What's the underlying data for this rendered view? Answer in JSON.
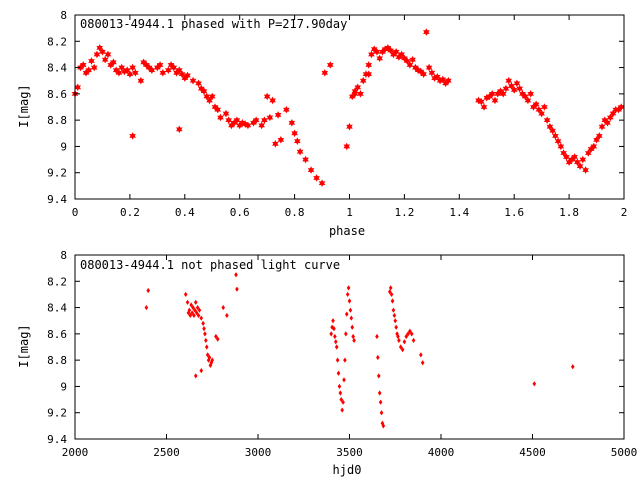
{
  "colors": {
    "series": "#ff0000",
    "axis": "#000000",
    "background": "#ffffff"
  },
  "chart_data": [
    {
      "type": "scatter",
      "title": "080013-4944.1 phased with P=217.90day",
      "xlabel": "phase",
      "ylabel": "I[mag]",
      "xlim": [
        0,
        2
      ],
      "ylim": [
        8,
        9.4
      ],
      "y_inverted": true,
      "grid": false,
      "legend": "none",
      "marker": "filled star",
      "xticks": [
        "0",
        "0.2",
        "0.4",
        "0.6",
        "0.8",
        "1",
        "1.2",
        "1.4",
        "1.6",
        "1.8",
        "2"
      ],
      "yticks": [
        "8",
        "8.2",
        "8.4",
        "8.6",
        "8.8",
        "9",
        "9.2",
        "9.4"
      ],
      "series": [
        {
          "x": [
            0.0,
            0.01,
            0.02,
            0.03,
            0.04,
            0.05,
            0.06,
            0.07,
            0.08,
            0.09,
            0.1,
            0.11,
            0.12,
            0.13,
            0.14,
            0.15,
            0.16,
            0.17,
            0.18,
            0.19,
            0.2,
            0.21,
            0.22,
            0.24,
            0.25,
            0.26,
            0.27,
            0.28,
            0.3,
            0.31,
            0.32,
            0.34,
            0.35,
            0.36,
            0.37,
            0.38,
            0.39,
            0.4,
            0.41,
            0.43,
            0.45,
            0.46,
            0.47,
            0.48,
            0.49,
            0.5,
            0.51,
            0.52,
            0.53,
            0.55,
            0.56,
            0.57,
            0.58,
            0.59,
            0.6,
            0.61,
            0.62,
            0.63,
            0.65,
            0.66,
            0.68,
            0.69,
            0.7,
            0.71,
            0.72,
            0.73,
            0.74,
            0.75,
            0.77,
            0.79,
            0.8,
            0.81,
            0.82,
            0.84,
            0.86,
            0.88,
            0.9,
            0.91,
            0.93,
            0.21,
            0.38,
            0.99,
            1.0,
            1.01,
            1.02,
            1.03,
            1.04,
            1.05,
            1.06,
            1.07,
            1.08,
            1.09,
            1.1,
            1.11,
            1.12,
            1.13,
            1.14,
            1.15,
            1.16,
            1.17,
            1.18,
            1.19,
            1.2,
            1.21,
            1.22,
            1.23,
            1.24,
            1.25,
            1.26,
            1.27,
            1.28,
            1.29,
            1.3,
            1.31,
            1.32,
            1.33,
            1.34,
            1.35,
            1.36,
            1.02,
            1.07,
            1.47,
            1.48,
            1.49,
            1.5,
            1.51,
            1.52,
            1.53,
            1.54,
            1.55,
            1.56,
            1.57,
            1.58,
            1.59,
            1.6,
            1.61,
            1.62,
            1.63,
            1.64,
            1.65,
            1.66,
            1.67,
            1.68,
            1.69,
            1.7,
            1.71,
            1.72,
            1.73,
            1.74,
            1.75,
            1.76,
            1.77,
            1.78,
            1.79,
            1.8,
            1.81,
            1.82,
            1.83,
            1.84,
            1.85,
            1.86,
            1.87,
            1.88,
            1.89,
            1.9,
            1.91,
            1.92,
            1.93,
            1.94,
            1.95,
            1.96,
            1.97,
            1.98,
            1.99
          ],
          "y": [
            8.6,
            8.55,
            8.4,
            8.38,
            8.44,
            8.42,
            8.35,
            8.4,
            8.3,
            8.25,
            8.28,
            8.34,
            8.3,
            8.38,
            8.36,
            8.42,
            8.44,
            8.4,
            8.43,
            8.42,
            8.45,
            8.4,
            8.44,
            8.5,
            8.36,
            8.38,
            8.4,
            8.42,
            8.4,
            8.38,
            8.44,
            8.42,
            8.38,
            8.4,
            8.44,
            8.42,
            8.45,
            8.48,
            8.46,
            8.5,
            8.52,
            8.56,
            8.58,
            8.62,
            8.65,
            8.62,
            8.7,
            8.72,
            8.78,
            8.75,
            8.8,
            8.84,
            8.82,
            8.8,
            8.84,
            8.82,
            8.83,
            8.84,
            8.82,
            8.8,
            8.84,
            8.8,
            8.62,
            8.78,
            8.65,
            8.98,
            8.76,
            8.95,
            8.72,
            8.82,
            8.9,
            8.96,
            9.04,
            9.1,
            9.18,
            9.24,
            9.28,
            8.44,
            8.38,
            8.92,
            8.87,
            9.0,
            8.85,
            8.62,
            8.58,
            8.55,
            8.6,
            8.5,
            8.45,
            8.38,
            8.3,
            8.26,
            8.28,
            8.33,
            8.28,
            8.26,
            8.25,
            8.27,
            8.3,
            8.28,
            8.32,
            8.3,
            8.33,
            8.35,
            8.38,
            8.34,
            8.4,
            8.42,
            8.43,
            8.45,
            8.13,
            8.4,
            8.44,
            8.48,
            8.47,
            8.5,
            8.49,
            8.52,
            8.5,
            8.6,
            8.45,
            8.65,
            8.66,
            8.7,
            8.63,
            8.62,
            8.6,
            8.65,
            8.6,
            8.58,
            8.6,
            8.56,
            8.5,
            8.54,
            8.57,
            8.52,
            8.56,
            8.6,
            8.62,
            8.65,
            8.6,
            8.7,
            8.68,
            8.72,
            8.75,
            8.7,
            8.8,
            8.85,
            8.88,
            8.92,
            8.96,
            9.0,
            9.05,
            9.08,
            9.12,
            9.1,
            9.08,
            9.12,
            9.15,
            9.1,
            9.18,
            9.05,
            9.02,
            9.0,
            8.95,
            8.92,
            8.85,
            8.8,
            8.82,
            8.78,
            8.75,
            8.72,
            8.72,
            8.7
          ]
        }
      ]
    },
    {
      "type": "scatter",
      "title": "080013-4944.1 not phased light curve",
      "xlabel": "hjd0",
      "ylabel": "I[mag]",
      "xlim": [
        2000,
        5000
      ],
      "ylim": [
        8,
        9.4
      ],
      "y_inverted": true,
      "grid": false,
      "legend": "none",
      "marker": "small filled diamond",
      "xticks": [
        "2000",
        "2500",
        "3000",
        "3500",
        "4000",
        "4500",
        "5000"
      ],
      "yticks": [
        "8",
        "8.2",
        "8.4",
        "8.6",
        "8.8",
        "9",
        "9.2",
        "9.4"
      ],
      "series": [
        {
          "x": [
            2390,
            2400,
            2605,
            2615,
            2620,
            2625,
            2630,
            2635,
            2640,
            2645,
            2650,
            2655,
            2660,
            2665,
            2670,
            2675,
            2680,
            2690,
            2700,
            2705,
            2710,
            2715,
            2720,
            2725,
            2730,
            2735,
            2740,
            2745,
            2750,
            2660,
            2690,
            2770,
            2780,
            2810,
            2830,
            2880,
            2885,
            3400,
            3405,
            3410,
            3415,
            3420,
            3425,
            3430,
            3435,
            3440,
            3445,
            3450,
            3455,
            3460,
            3465,
            3470,
            3475,
            3480,
            3485,
            3490,
            3495,
            3500,
            3505,
            3510,
            3515,
            3520,
            3525,
            3650,
            3655,
            3660,
            3665,
            3670,
            3675,
            3680,
            3685,
            3720,
            3725,
            3730,
            3735,
            3740,
            3745,
            3750,
            3755,
            3760,
            3765,
            3770,
            3780,
            3790,
            3800,
            3810,
            3820,
            3830,
            3840,
            3850,
            3890,
            3900,
            4510,
            4720
          ],
          "y": [
            8.4,
            8.27,
            8.3,
            8.36,
            8.44,
            8.42,
            8.46,
            8.38,
            8.44,
            8.4,
            8.46,
            8.42,
            8.36,
            8.44,
            8.4,
            8.46,
            8.42,
            8.48,
            8.52,
            8.56,
            8.6,
            8.65,
            8.7,
            8.76,
            8.8,
            8.78,
            8.84,
            8.82,
            8.8,
            8.92,
            8.88,
            8.62,
            8.64,
            8.4,
            8.46,
            8.15,
            8.26,
            8.6,
            8.55,
            8.5,
            8.56,
            8.62,
            8.66,
            8.7,
            8.8,
            8.9,
            9.0,
            9.05,
            9.1,
            9.18,
            9.12,
            8.95,
            8.8,
            8.6,
            8.45,
            8.3,
            8.25,
            8.35,
            8.42,
            8.48,
            8.55,
            8.62,
            8.65,
            8.62,
            8.78,
            8.92,
            9.05,
            9.12,
            9.2,
            9.28,
            9.3,
            8.28,
            8.25,
            8.3,
            8.35,
            8.42,
            8.46,
            8.5,
            8.55,
            8.6,
            8.62,
            8.65,
            8.7,
            8.72,
            8.66,
            8.62,
            8.6,
            8.58,
            8.6,
            8.65,
            8.76,
            8.82,
            8.98,
            8.85
          ]
        }
      ]
    }
  ]
}
